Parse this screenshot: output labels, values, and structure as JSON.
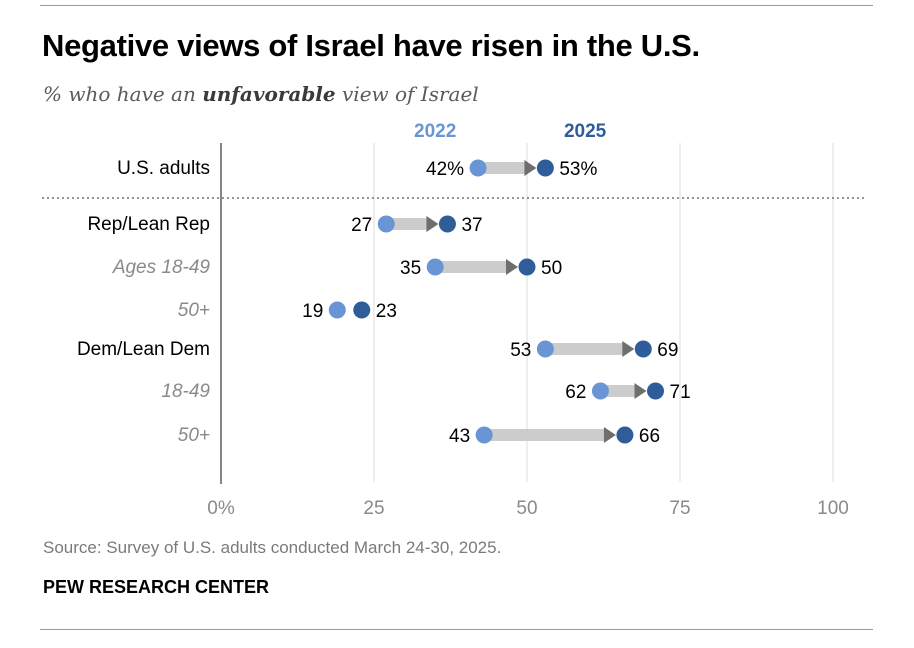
{
  "title": "Negative views of Israel have risen in the U.S.",
  "subtitle": {
    "prefix": "% who have an ",
    "emphasis": "unfavorable",
    "suffix": " view of Israel"
  },
  "source": "Source: Survey of U.S. adults conducted March 24-30, 2025.",
  "brand": "PEW RESEARCH CENTER",
  "colors": {
    "series_2022": "#6a95d4",
    "series_2025": "#2e5d99",
    "arrow": "#cccccc",
    "arrowhead": "#6e6e6e",
    "grid": "#dddddd",
    "label_main": "#000000",
    "label_sub": "#8a8a8a",
    "axis_text": "#8a8a8a"
  },
  "chart_data": {
    "type": "dot-arrow",
    "legend": [
      "2022",
      "2025"
    ],
    "x_ticks": [
      "0%",
      "25",
      "50",
      "75",
      "100"
    ],
    "xlim": [
      0,
      100
    ],
    "series": [
      {
        "name": "2022",
        "values": [
          42,
          27,
          35,
          19,
          53,
          62,
          43
        ]
      },
      {
        "name": "2025",
        "values": [
          53,
          37,
          50,
          23,
          69,
          71,
          66
        ]
      }
    ],
    "rows": [
      {
        "label": "U.S. adults",
        "sub": false,
        "v2022": 42,
        "v2025": 53,
        "label2022": "42%",
        "label2025": "53%"
      },
      {
        "label": "Rep/Lean Rep",
        "sub": false,
        "v2022": 27,
        "v2025": 37,
        "label2022": "27",
        "label2025": "37"
      },
      {
        "label": "Ages 18-49",
        "sub": true,
        "v2022": 35,
        "v2025": 50,
        "label2022": "35",
        "label2025": "50"
      },
      {
        "label": "50+",
        "sub": true,
        "v2022": 19,
        "v2025": 23,
        "label2022": "19",
        "label2025": "23"
      },
      {
        "label": "Dem/Lean Dem",
        "sub": false,
        "v2022": 53,
        "v2025": 69,
        "label2022": "53",
        "label2025": "69"
      },
      {
        "label": "18-49",
        "sub": true,
        "v2022": 62,
        "v2025": 71,
        "label2022": "62",
        "label2025": "71"
      },
      {
        "label": "50+",
        "sub": true,
        "v2022": 43,
        "v2025": 66,
        "label2022": "43",
        "label2025": "66"
      }
    ]
  }
}
